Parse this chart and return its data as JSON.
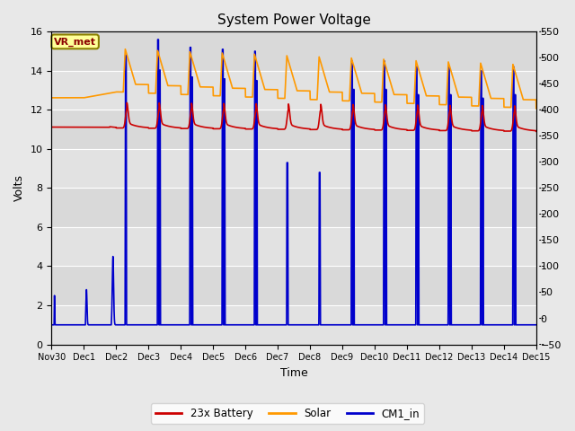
{
  "title": "System Power Voltage",
  "xlabel": "Time",
  "ylabel": "Volts",
  "ylim_left": [
    0,
    16
  ],
  "ylim_right": [
    -50,
    550
  ],
  "yticks_left": [
    0,
    2,
    4,
    6,
    8,
    10,
    12,
    14,
    16
  ],
  "yticks_right": [
    -50,
    0,
    50,
    100,
    150,
    200,
    250,
    300,
    350,
    400,
    450,
    500,
    550
  ],
  "xtick_labels": [
    "Nov 30",
    "Dec 1",
    "Dec 2",
    "Dec 3",
    "Dec 4",
    "Dec 5",
    "Dec 6",
    "Dec 7",
    "Dec 8",
    "Dec 9",
    "Dec 10",
    "Dec 11",
    "Dec 12",
    "Dec 13",
    "Dec 14",
    "Dec 15"
  ],
  "bg_color": "#e8e8e8",
  "plot_bg_color": "#dcdcdc",
  "annotation_text": "VR_met",
  "annotation_bg": "#ffff99",
  "annotation_border": "#8B8000",
  "legend_labels": [
    "23x Battery",
    "Solar",
    "CM1_in"
  ],
  "battery_color": "#cc0000",
  "solar_color": "#ff9900",
  "cm1_color": "#0000cc",
  "line_width": 1.2
}
